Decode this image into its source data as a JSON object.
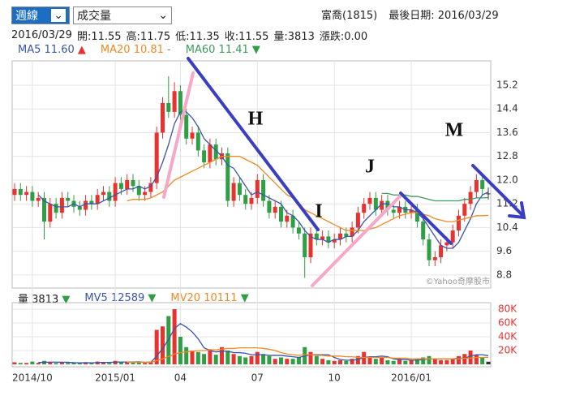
{
  "toolbar": {
    "period": "週線",
    "indicator": "成交量"
  },
  "header": {
    "stock": "富喬(1815)",
    "last_date": "最後日期: 2016/03/29",
    "info": [
      "2016/03/29",
      "開:11.55",
      "高:11.75",
      "低:11.35",
      "收:11.55",
      "量:3813",
      "漲跌:0.00"
    ]
  },
  "chart_data": [
    {
      "type": "candlestick",
      "categories": [
        null,
        null,
        null,
        "2014/10",
        null,
        null,
        null,
        null,
        null,
        null,
        null,
        null,
        null,
        null,
        null,
        null,
        null,
        "2015/01",
        null,
        null,
        null,
        null,
        null,
        null,
        null,
        null,
        null,
        null,
        "04",
        null,
        null,
        null,
        null,
        null,
        null,
        null,
        null,
        null,
        null,
        null,
        null,
        "07",
        null,
        null,
        null,
        null,
        null,
        null,
        null,
        null,
        null,
        null,
        null,
        null,
        "10",
        null,
        null,
        null,
        null,
        null,
        null,
        null,
        null,
        null,
        null,
        null,
        null,
        "2016/01",
        null,
        null,
        null,
        null,
        null,
        null,
        null,
        null,
        null,
        null,
        null,
        null,
        null
      ],
      "open": [
        11.5,
        11.7,
        11.5,
        11.6,
        11.3,
        11.4,
        10.6,
        11.2,
        10.9,
        11.4,
        11.3,
        11.1,
        11.0,
        11.3,
        11.2,
        11.5,
        11.6,
        11.3,
        11.9,
        11.7,
        12.0,
        11.8,
        11.5,
        11.6,
        11.9,
        13.6,
        14.6,
        14.3,
        15.0,
        14.2,
        13.4,
        13.6,
        13.0,
        12.6,
        13.2,
        12.7,
        12.9,
        11.3,
        11.9,
        11.5,
        11.2,
        11.4,
        12.0,
        11.3,
        10.9,
        11.1,
        10.6,
        10.8,
        10.4,
        10.2,
        9.4,
        10.2,
        10.0,
        10.1,
        9.9,
        10.0,
        10.2,
        10.1,
        10.4,
        10.9,
        11.2,
        11.4,
        11.0,
        11.3,
        11.0,
        10.9,
        11.1,
        10.9,
        11.0,
        10.6,
        10.0,
        9.3,
        9.4,
        9.8,
        9.9,
        10.3,
        10.8,
        11.2,
        11.6,
        12.0,
        11.55
      ],
      "high": [
        11.9,
        11.9,
        11.8,
        11.8,
        11.6,
        11.6,
        11.4,
        11.4,
        11.6,
        11.6,
        11.5,
        11.3,
        11.5,
        11.5,
        11.7,
        11.8,
        11.8,
        12.1,
        12.1,
        12.2,
        12.2,
        12.0,
        11.8,
        12.1,
        13.8,
        14.8,
        15.5,
        15.3,
        15.2,
        14.4,
        13.8,
        13.8,
        13.2,
        13.4,
        13.4,
        13.1,
        13.1,
        12.1,
        12.1,
        11.7,
        11.6,
        12.2,
        12.2,
        11.5,
        11.3,
        11.3,
        11.0,
        11.0,
        10.6,
        10.4,
        10.4,
        10.4,
        10.3,
        10.3,
        10.2,
        10.4,
        10.4,
        10.6,
        11.1,
        11.4,
        11.6,
        11.6,
        11.5,
        11.5,
        11.2,
        11.3,
        11.3,
        11.2,
        11.2,
        10.8,
        10.2,
        9.6,
        10.0,
        10.1,
        10.5,
        11.0,
        11.4,
        11.8,
        12.2,
        12.2,
        11.75
      ],
      "low": [
        11.3,
        11.3,
        11.3,
        11.1,
        11.1,
        10.0,
        10.4,
        10.7,
        10.7,
        11.1,
        10.9,
        10.8,
        10.8,
        11.0,
        11.0,
        11.3,
        11.1,
        11.1,
        11.5,
        11.5,
        11.6,
        11.3,
        11.3,
        11.4,
        11.7,
        13.4,
        14.1,
        14.1,
        14.0,
        13.2,
        13.2,
        12.8,
        12.4,
        12.4,
        12.5,
        12.5,
        11.1,
        11.1,
        11.3,
        11.0,
        11.0,
        11.2,
        11.1,
        10.7,
        10.7,
        10.4,
        10.4,
        10.2,
        10.0,
        8.7,
        9.2,
        9.8,
        9.8,
        9.7,
        9.7,
        9.8,
        9.9,
        9.9,
        10.2,
        10.7,
        11.0,
        10.8,
        10.8,
        10.8,
        10.7,
        10.7,
        10.7,
        10.7,
        10.4,
        9.8,
        9.1,
        9.1,
        9.2,
        9.6,
        9.7,
        10.1,
        10.6,
        11.0,
        11.4,
        11.5,
        11.35
      ],
      "close": [
        11.7,
        11.5,
        11.6,
        11.3,
        11.4,
        10.6,
        11.2,
        10.9,
        11.4,
        11.3,
        11.1,
        11.0,
        11.3,
        11.2,
        11.5,
        11.6,
        11.3,
        11.9,
        11.7,
        12.0,
        11.8,
        11.5,
        11.6,
        11.9,
        13.6,
        14.6,
        14.3,
        15.0,
        14.2,
        13.4,
        13.6,
        13.0,
        12.6,
        13.2,
        12.7,
        12.9,
        11.3,
        11.9,
        11.5,
        11.2,
        11.4,
        12.0,
        11.3,
        10.9,
        11.1,
        10.6,
        10.8,
        10.4,
        10.2,
        9.4,
        10.2,
        10.0,
        10.1,
        9.9,
        10.0,
        10.2,
        10.1,
        10.4,
        10.9,
        11.2,
        11.4,
        11.0,
        11.3,
        11.0,
        10.9,
        11.1,
        10.9,
        11.0,
        10.6,
        10.0,
        9.3,
        9.4,
        9.8,
        9.9,
        10.3,
        10.8,
        11.2,
        11.6,
        12.0,
        11.7,
        11.55
      ],
      "up_color": "#e8322f",
      "down_color": "#2f9e44",
      "flat_color": "#333333",
      "series": [
        {
          "name": "MA5",
          "color": "#3a55a8",
          "last_label": "11.60",
          "trend": "▲",
          "trend_color": "#e8322f",
          "values": [
            null,
            null,
            null,
            null,
            11.5,
            11.3,
            11.2,
            11.1,
            11.1,
            11.1,
            11.2,
            11.1,
            11.2,
            11.2,
            11.2,
            11.3,
            11.4,
            11.5,
            11.6,
            11.7,
            11.7,
            11.8,
            11.7,
            11.8,
            12.1,
            12.6,
            13.2,
            13.9,
            14.3,
            14.3,
            14.1,
            13.8,
            13.4,
            13.2,
            13.0,
            12.8,
            12.5,
            12.4,
            12.1,
            11.8,
            11.5,
            11.6,
            11.5,
            11.4,
            11.3,
            11.2,
            10.9,
            10.8,
            10.6,
            10.3,
            10.1,
            10.0,
            10.0,
            9.9,
            10.0,
            10.0,
            10.1,
            10.1,
            10.3,
            10.6,
            10.8,
            11.0,
            11.2,
            11.2,
            11.1,
            11.1,
            11.0,
            11.0,
            10.9,
            10.7,
            10.4,
            10.1,
            9.8,
            9.7,
            9.7,
            9.9,
            10.3,
            10.7,
            11.2,
            11.5,
            11.6
          ]
        },
        {
          "name": "MA20",
          "color": "#f08a24",
          "last_label": "10.81",
          "trend": "-",
          "trend_color": "#888888",
          "values": [
            null,
            null,
            null,
            null,
            null,
            null,
            null,
            null,
            null,
            null,
            null,
            null,
            null,
            null,
            null,
            null,
            null,
            null,
            null,
            11.3,
            11.35,
            11.35,
            11.35,
            11.4,
            11.5,
            11.6,
            11.8,
            12.0,
            12.1,
            12.2,
            12.3,
            12.4,
            12.5,
            12.6,
            12.7,
            12.8,
            12.8,
            12.8,
            12.8,
            12.7,
            12.6,
            12.5,
            12.3,
            12.1,
            11.9,
            11.7,
            11.5,
            11.4,
            11.2,
            11.0,
            10.9,
            10.8,
            10.7,
            10.6,
            10.5,
            10.4,
            10.3,
            10.3,
            10.3,
            10.3,
            10.35,
            10.4,
            10.5,
            10.6,
            10.7,
            10.8,
            10.85,
            10.9,
            10.9,
            10.85,
            10.8,
            10.7,
            10.65,
            10.6,
            10.6,
            10.65,
            10.7,
            10.75,
            10.8,
            10.8,
            10.81
          ]
        },
        {
          "name": "MA60",
          "color": "#3c9a5c",
          "last_label": "11.41",
          "trend": "▼",
          "trend_color": "#2f9e44",
          "values": [
            null,
            null,
            null,
            null,
            null,
            null,
            null,
            null,
            null,
            null,
            null,
            null,
            null,
            null,
            null,
            null,
            null,
            null,
            null,
            null,
            null,
            null,
            null,
            null,
            null,
            null,
            null,
            null,
            null,
            null,
            null,
            null,
            null,
            null,
            null,
            null,
            null,
            null,
            null,
            null,
            null,
            null,
            null,
            null,
            null,
            null,
            null,
            null,
            null,
            null,
            null,
            null,
            null,
            null,
            null,
            null,
            null,
            null,
            null,
            null,
            null,
            null,
            11.55,
            11.55,
            11.5,
            11.5,
            11.5,
            11.45,
            11.45,
            11.4,
            11.35,
            11.3,
            11.3,
            11.3,
            11.3,
            11.3,
            11.35,
            11.35,
            11.4,
            11.4,
            11.41
          ]
        }
      ],
      "ylim": [
        8.36,
        16.02
      ],
      "yticks": [
        8.8,
        9.6,
        10.4,
        11.2,
        {
          "value": 12,
          "label": "12.0"
        },
        12.8,
        13.6,
        14.4,
        15.2
      ],
      "grid": true,
      "annotations": [
        "H",
        "I",
        "J",
        "M"
      ],
      "watermark": "©Yahoo奇摩股市"
    },
    {
      "type": "bar",
      "name": "量",
      "value_label": "3813",
      "trend": "▼",
      "trend_color": "#2f9e44",
      "values": [
        3000,
        2000,
        2000,
        4000,
        2000,
        5000,
        3000,
        2000,
        3000,
        2000,
        2000,
        2000,
        3000,
        2000,
        4000,
        3000,
        2000,
        5000,
        3000,
        4000,
        3000,
        3000,
        2000,
        4000,
        50000,
        55000,
        70000,
        80000,
        40000,
        25000,
        20000,
        18000,
        15000,
        22000,
        14000,
        25000,
        20000,
        15000,
        12000,
        10000,
        12000,
        18000,
        15000,
        12000,
        8000,
        10000,
        8000,
        8000,
        10000,
        25000,
        18000,
        12000,
        8000,
        6000,
        5000,
        6000,
        5000,
        8000,
        12000,
        18000,
        10000,
        8000,
        10000,
        6000,
        5000,
        8000,
        5000,
        6000,
        8000,
        10000,
        12000,
        8000,
        6000,
        6000,
        8000,
        12000,
        15000,
        20000,
        14000,
        10000,
        3813
      ],
      "series": [
        {
          "name": "MV5",
          "color": "#3a55a8",
          "last_label": "12589",
          "trend": "▼",
          "trend_color": "#2f9e44",
          "values": [
            null,
            null,
            null,
            null,
            2600,
            3000,
            3200,
            3200,
            3000,
            3000,
            2400,
            2200,
            2400,
            2200,
            2600,
            2800,
            2800,
            3200,
            3400,
            3400,
            3400,
            3600,
            3000,
            3000,
            12000,
            23000,
            36000,
            52000,
            59000,
            54000,
            47000,
            37000,
            24000,
            20000,
            18000,
            19000,
            19000,
            17000,
            17000,
            16000,
            14000,
            14000,
            14000,
            13000,
            13000,
            13000,
            12000,
            11000,
            10000,
            12000,
            14000,
            14000,
            14000,
            14000,
            10000,
            7000,
            6000,
            6000,
            7000,
            10000,
            11000,
            11000,
            12000,
            11000,
            8000,
            7000,
            7000,
            6000,
            6000,
            7000,
            8000,
            8000,
            8000,
            8000,
            8000,
            9000,
            9000,
            12000,
            14000,
            14000,
            12589
          ]
        },
        {
          "name": "MV20",
          "color": "#f08a24",
          "last_label": "10111",
          "trend": "▼",
          "trend_color": "#2f9e44",
          "values": [
            null,
            null,
            null,
            null,
            null,
            null,
            null,
            null,
            null,
            null,
            null,
            null,
            null,
            null,
            null,
            null,
            null,
            null,
            null,
            3000,
            3000,
            3000,
            3000,
            3100,
            5500,
            8000,
            11500,
            15000,
            17000,
            18000,
            19000,
            20000,
            20000,
            21000,
            21000,
            22000,
            23000,
            23000,
            24000,
            24000,
            24000,
            24000,
            23000,
            22000,
            20000,
            17000,
            15000,
            14000,
            13000,
            14000,
            14000,
            13000,
            13000,
            12000,
            12000,
            12000,
            11000,
            11000,
            10000,
            10000,
            10000,
            10000,
            10000,
            10000,
            9000,
            9000,
            9000,
            8000,
            8000,
            8000,
            8000,
            8000,
            8000,
            8000,
            8000,
            8000,
            9000,
            9000,
            10000,
            10000,
            10111
          ]
        }
      ],
      "ylim": [
        0,
        89400
      ],
      "yticks": [
        {
          "value": 20000,
          "label": "20K"
        },
        {
          "value": 40000,
          "label": "40K"
        },
        {
          "value": 60000,
          "label": "60K"
        },
        {
          "value": 80000,
          "label": "80K"
        }
      ],
      "grid": true
    }
  ]
}
